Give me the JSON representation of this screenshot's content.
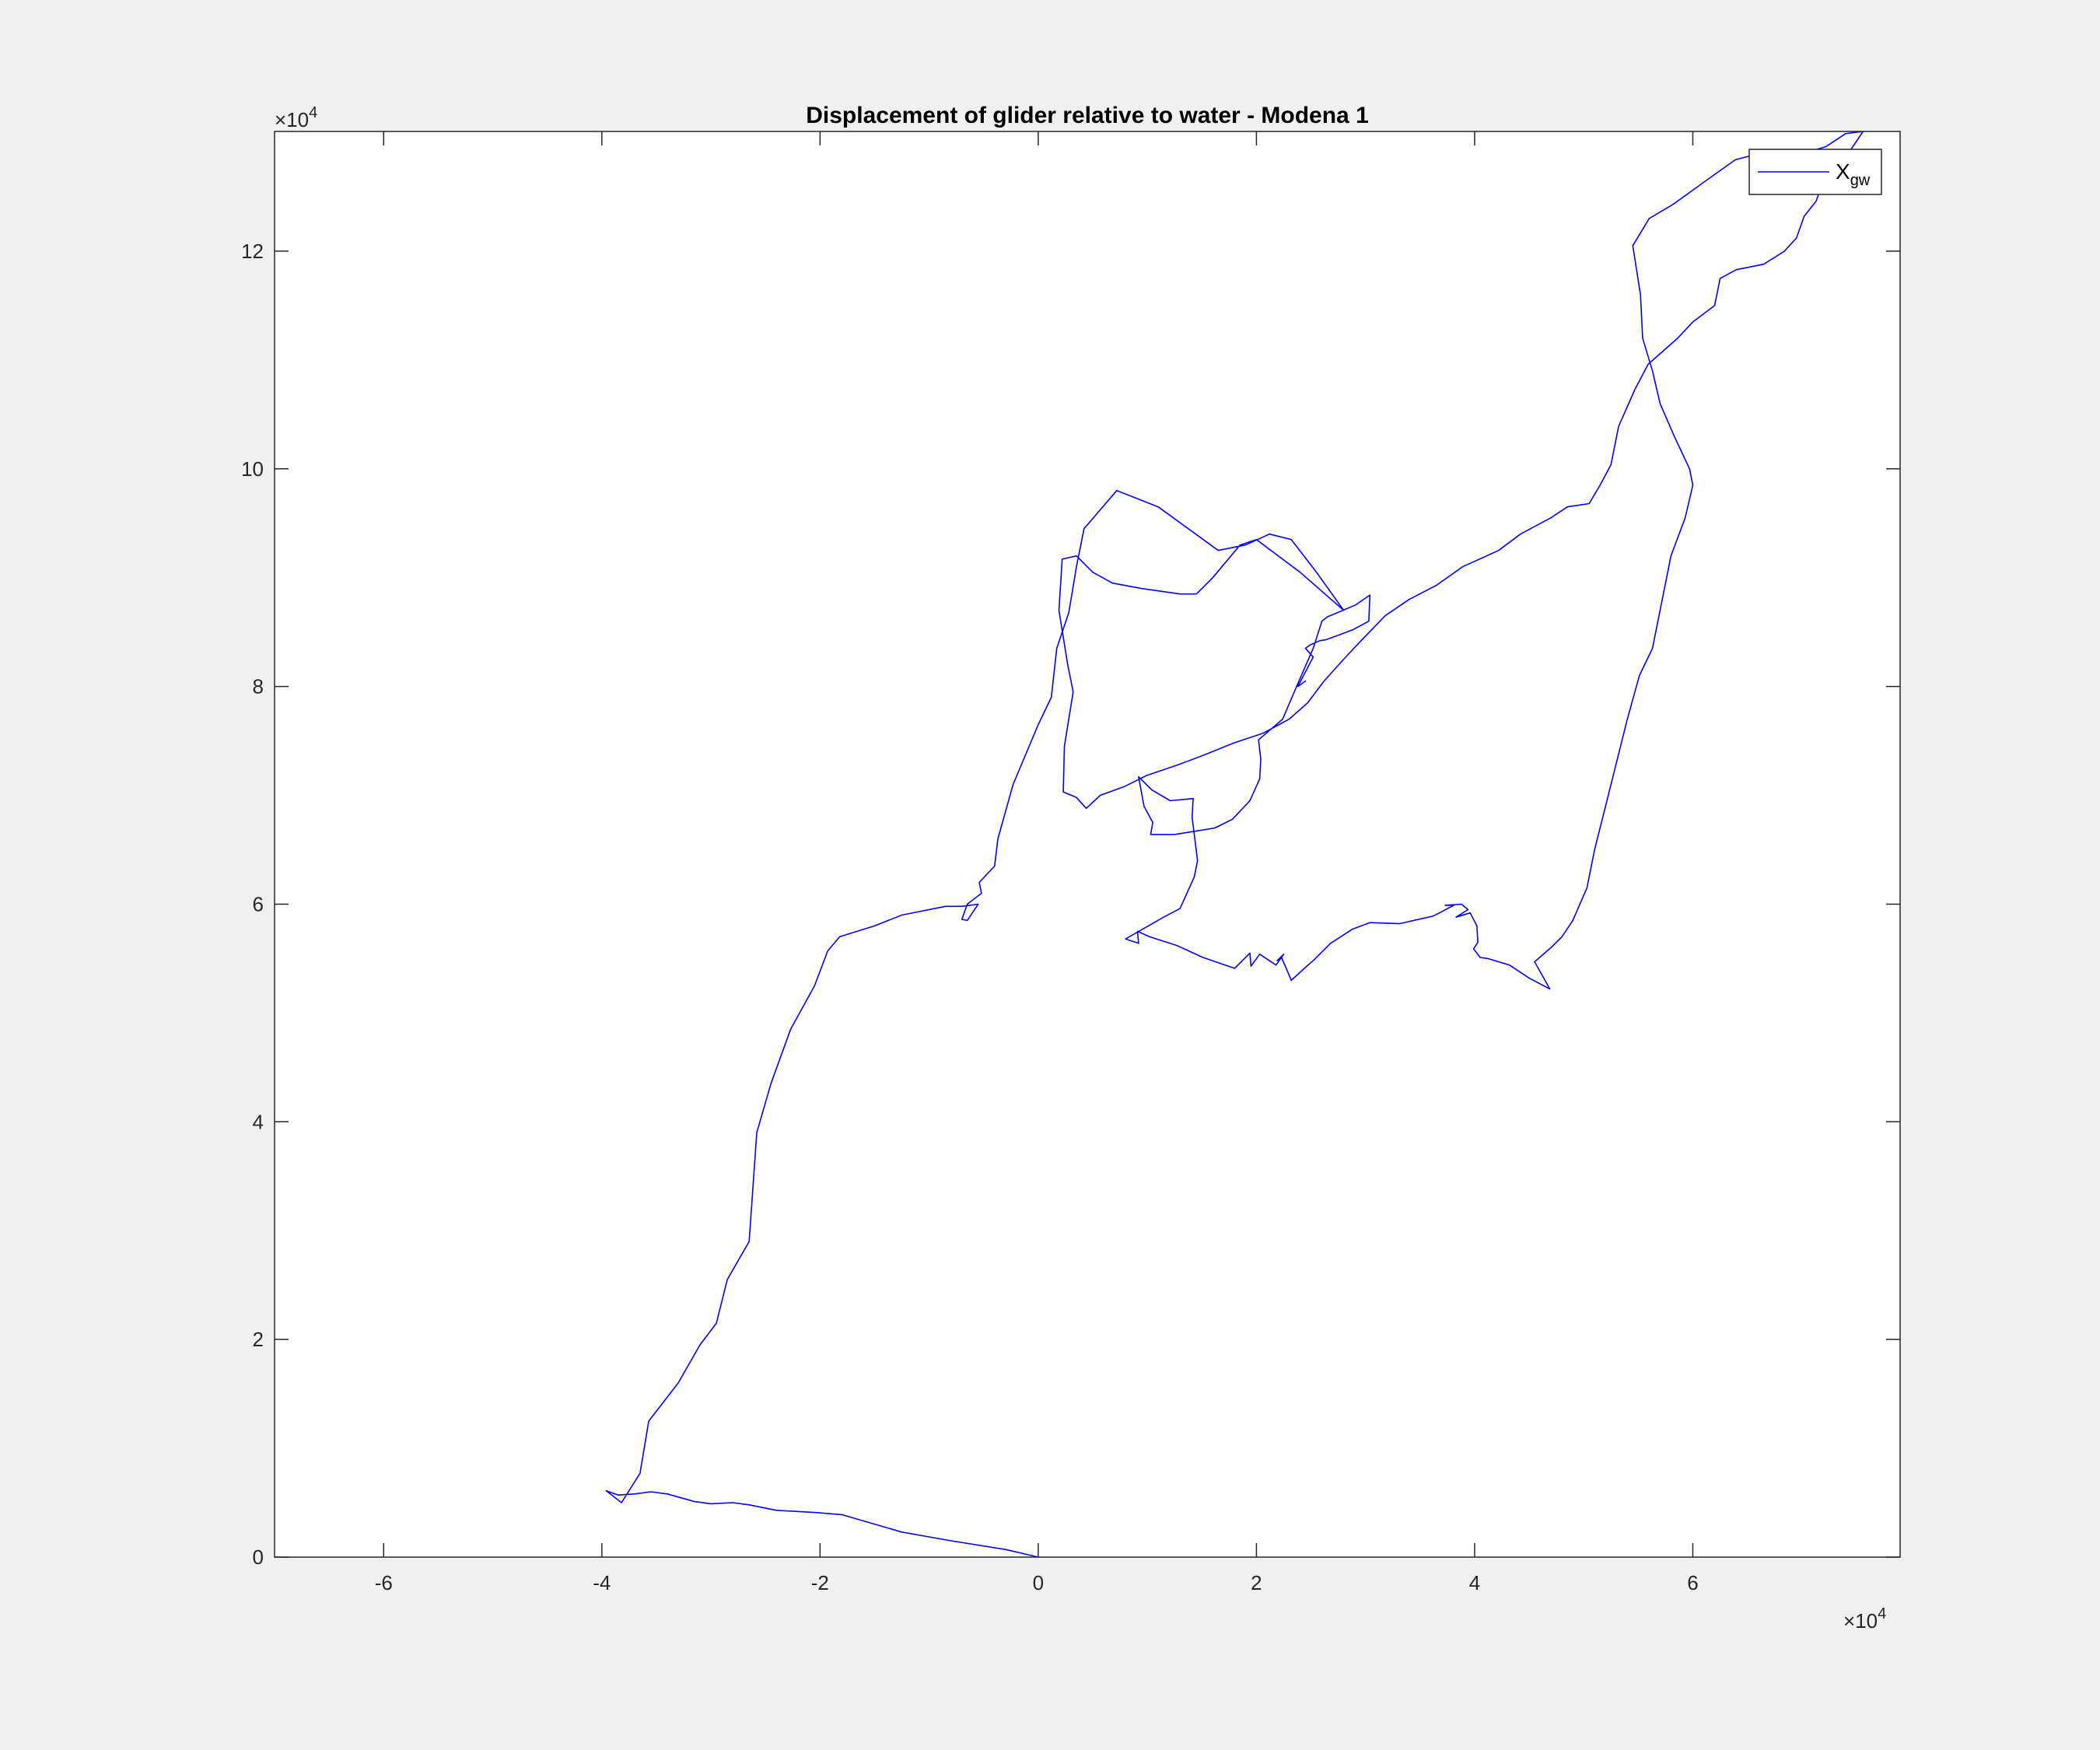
{
  "chart_data": {
    "type": "line",
    "title": "Displacement of glider relative to water - Modena 1",
    "xlabel": "",
    "ylabel": "",
    "xlim": [
      -70000,
      79000
    ],
    "ylim": [
      0,
      131000
    ],
    "x_ticks": [
      -60000,
      -40000,
      -20000,
      0,
      20000,
      40000,
      60000
    ],
    "x_tick_labels": [
      "-6",
      "-4",
      "-2",
      "0",
      "2",
      "4",
      "6"
    ],
    "y_ticks": [
      0,
      20000,
      40000,
      60000,
      80000,
      100000,
      120000
    ],
    "y_tick_labels": [
      "0",
      "2",
      "4",
      "6",
      "8",
      "10",
      "12"
    ],
    "x_exponent_label": "×10",
    "x_exponent_power": "4",
    "y_exponent_label": "×10",
    "y_exponent_power": "4",
    "grid": false,
    "legend_position": "top-right",
    "series": [
      {
        "name_main": "X",
        "name_subscript": "gw",
        "color": "#0000ff",
        "points": [
          [
            0,
            0
          ],
          [
            -3000,
            700
          ],
          [
            -8000,
            1500
          ],
          [
            -12500,
            2300
          ],
          [
            -18000,
            3900
          ],
          [
            -20500,
            4100
          ],
          [
            -24000,
            4300
          ],
          [
            -26500,
            4800
          ],
          [
            -28000,
            5000
          ],
          [
            -30000,
            4900
          ],
          [
            -31500,
            5100
          ],
          [
            -34000,
            5800
          ],
          [
            -35500,
            6000
          ],
          [
            -37000,
            5800
          ],
          [
            -38500,
            5700
          ],
          [
            -39600,
            6100
          ],
          [
            -38200,
            5000
          ],
          [
            -36500,
            7700
          ],
          [
            -35700,
            12500
          ],
          [
            -33000,
            16000
          ],
          [
            -31000,
            19500
          ],
          [
            -29500,
            21500
          ],
          [
            -28500,
            25500
          ],
          [
            -26500,
            29000
          ],
          [
            -25800,
            39000
          ],
          [
            -24500,
            43500
          ],
          [
            -22700,
            48500
          ],
          [
            -20500,
            52500
          ],
          [
            -19300,
            55700
          ],
          [
            -18200,
            57000
          ],
          [
            -15000,
            58000
          ],
          [
            -12500,
            59000
          ],
          [
            -8500,
            59800
          ],
          [
            -7000,
            59800
          ],
          [
            -5500,
            60000
          ],
          [
            -6500,
            58500
          ],
          [
            -7000,
            58600
          ],
          [
            -6500,
            60000
          ],
          [
            -5200,
            61000
          ],
          [
            -5400,
            62000
          ],
          [
            -4000,
            63500
          ],
          [
            -3700,
            66000
          ],
          [
            -2300,
            71000
          ],
          [
            0,
            76500
          ],
          [
            1200,
            79000
          ],
          [
            1700,
            83500
          ],
          [
            2800,
            86800
          ],
          [
            3500,
            91000
          ],
          [
            4200,
            94500
          ],
          [
            7200,
            98000
          ],
          [
            11000,
            96500
          ],
          [
            16500,
            92500
          ],
          [
            19000,
            93000
          ],
          [
            21200,
            94000
          ],
          [
            23200,
            93500
          ],
          [
            25500,
            90500
          ],
          [
            28000,
            87000
          ],
          [
            24000,
            90500
          ],
          [
            20000,
            93500
          ],
          [
            18500,
            93000
          ],
          [
            16000,
            90000
          ],
          [
            14500,
            88500
          ],
          [
            13000,
            88500
          ],
          [
            9500,
            89000
          ],
          [
            6800,
            89500
          ],
          [
            5000,
            90500
          ],
          [
            3500,
            92000
          ],
          [
            2200,
            91700
          ],
          [
            1900,
            87000
          ],
          [
            2700,
            82000
          ],
          [
            3200,
            79500
          ],
          [
            2400,
            74500
          ],
          [
            2300,
            70300
          ],
          [
            3500,
            69800
          ],
          [
            4400,
            68800
          ],
          [
            5700,
            70000
          ],
          [
            7900,
            70800
          ],
          [
            9900,
            71800
          ],
          [
            12800,
            72800
          ],
          [
            15200,
            73700
          ],
          [
            17900,
            74800
          ],
          [
            20600,
            75700
          ],
          [
            23000,
            77000
          ],
          [
            24700,
            78500
          ],
          [
            26200,
            80500
          ],
          [
            28000,
            82500
          ],
          [
            29400,
            84000
          ],
          [
            31800,
            86500
          ],
          [
            34000,
            88000
          ],
          [
            36500,
            89300
          ],
          [
            38900,
            91000
          ],
          [
            42200,
            92500
          ],
          [
            44200,
            94000
          ],
          [
            47000,
            95500
          ],
          [
            48500,
            96500
          ],
          [
            50500,
            96800
          ],
          [
            51500,
            98500
          ],
          [
            52500,
            100400
          ],
          [
            53200,
            103900
          ],
          [
            54700,
            107300
          ],
          [
            55900,
            109600
          ],
          [
            58600,
            112000
          ],
          [
            60000,
            113500
          ],
          [
            62000,
            115000
          ],
          [
            62500,
            117500
          ],
          [
            64000,
            118300
          ],
          [
            66500,
            118800
          ],
          [
            68400,
            120000
          ],
          [
            69500,
            121200
          ],
          [
            70200,
            123200
          ],
          [
            71300,
            124600
          ],
          [
            72000,
            126500
          ],
          [
            73400,
            128000
          ],
          [
            74600,
            129500
          ],
          [
            75600,
            131000
          ],
          [
            74000,
            130800
          ],
          [
            72200,
            129600
          ],
          [
            70100,
            129000
          ],
          [
            66200,
            129000
          ],
          [
            63900,
            128400
          ],
          [
            61100,
            126400
          ],
          [
            58200,
            124300
          ],
          [
            56000,
            123000
          ],
          [
            54500,
            120500
          ],
          [
            55200,
            116000
          ],
          [
            55400,
            112000
          ],
          [
            56300,
            109000
          ],
          [
            57000,
            106000
          ],
          [
            58300,
            103000
          ],
          [
            59700,
            100000
          ],
          [
            60000,
            98500
          ],
          [
            59300,
            95500
          ],
          [
            58000,
            92000
          ],
          [
            57200,
            88000
          ],
          [
            56300,
            83500
          ],
          [
            55100,
            81000
          ],
          [
            54000,
            77000
          ],
          [
            53000,
            73000
          ],
          [
            52000,
            69000
          ],
          [
            51000,
            65000
          ],
          [
            50300,
            61500
          ],
          [
            49000,
            58500
          ],
          [
            48000,
            57000
          ],
          [
            47000,
            56000
          ],
          [
            45500,
            54700
          ],
          [
            46900,
            52200
          ],
          [
            45000,
            53200
          ],
          [
            43200,
            54400
          ],
          [
            41200,
            55000
          ],
          [
            40500,
            55100
          ],
          [
            39900,
            55900
          ],
          [
            40300,
            56500
          ],
          [
            40200,
            58000
          ],
          [
            39600,
            59200
          ],
          [
            38300,
            58800
          ],
          [
            39400,
            59500
          ],
          [
            38800,
            60000
          ],
          [
            37300,
            59900
          ],
          [
            38100,
            59900
          ],
          [
            36200,
            58900
          ],
          [
            33100,
            58200
          ],
          [
            30400,
            58300
          ],
          [
            28800,
            57700
          ],
          [
            26800,
            56400
          ],
          [
            25300,
            54900
          ],
          [
            24400,
            54100
          ],
          [
            23200,
            53000
          ],
          [
            22300,
            55100
          ],
          [
            21900,
            54800
          ],
          [
            22500,
            55400
          ],
          [
            21800,
            54400
          ],
          [
            20300,
            55400
          ],
          [
            19500,
            54300
          ],
          [
            19400,
            55500
          ],
          [
            18000,
            54100
          ],
          [
            15100,
            55100
          ],
          [
            12700,
            56200
          ],
          [
            10200,
            57000
          ],
          [
            9100,
            57500
          ],
          [
            9200,
            56400
          ],
          [
            8000,
            56800
          ],
          [
            11500,
            58800
          ],
          [
            13000,
            59600
          ],
          [
            14300,
            62500
          ],
          [
            14600,
            64000
          ],
          [
            14100,
            68000
          ],
          [
            14200,
            69700
          ],
          [
            12100,
            69500
          ],
          [
            10400,
            70500
          ],
          [
            9200,
            71700
          ],
          [
            9700,
            69000
          ],
          [
            10500,
            67500
          ],
          [
            10300,
            66400
          ],
          [
            12500,
            66400
          ],
          [
            14400,
            66700
          ],
          [
            16200,
            67000
          ],
          [
            17800,
            67800
          ],
          [
            19400,
            69500
          ],
          [
            20300,
            71500
          ],
          [
            20400,
            73300
          ],
          [
            20200,
            75100
          ],
          [
            22400,
            77000
          ],
          [
            23900,
            80500
          ],
          [
            25200,
            83500
          ],
          [
            26000,
            86000
          ],
          [
            26500,
            86400
          ],
          [
            27700,
            86900
          ],
          [
            29100,
            87500
          ],
          [
            30400,
            88400
          ],
          [
            30300,
            86000
          ],
          [
            28800,
            85200
          ],
          [
            27500,
            84700
          ],
          [
            26400,
            84300
          ],
          [
            25800,
            84200
          ],
          [
            24900,
            83800
          ],
          [
            24500,
            83500
          ],
          [
            25200,
            82700
          ],
          [
            23800,
            80000
          ],
          [
            24500,
            80500
          ],
          [
            23800,
            80000
          ]
        ]
      }
    ]
  }
}
